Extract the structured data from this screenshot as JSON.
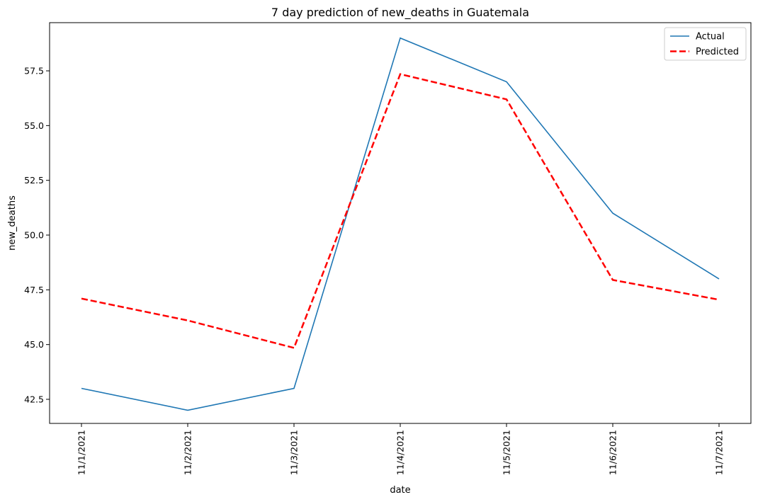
{
  "chart_data": {
    "type": "line",
    "title": "7 day prediction of new_deaths in Guatemala",
    "xlabel": "date",
    "ylabel": "new_deaths",
    "categories": [
      "11/1/2021",
      "11/2/2021",
      "11/3/2021",
      "11/4/2021",
      "11/5/2021",
      "11/6/2021",
      "11/7/2021"
    ],
    "ylim": [
      41.4,
      59.7
    ],
    "yticks": [
      42.5,
      45.0,
      47.5,
      50.0,
      52.5,
      55.0,
      57.5
    ],
    "ytick_labels": [
      "42.5",
      "45.0",
      "47.5",
      "50.0",
      "52.5",
      "55.0",
      "57.5"
    ],
    "grid": false,
    "legend_position": "top-right",
    "series": [
      {
        "name": "Actual",
        "color": "#1f77b4",
        "style": "solid",
        "values": [
          43,
          42,
          43,
          59,
          57,
          51,
          48
        ]
      },
      {
        "name": "Predicted",
        "color": "#ff0000",
        "style": "dashed",
        "values": [
          47.1,
          46.1,
          44.85,
          57.35,
          56.2,
          47.95,
          47.05
        ]
      }
    ]
  }
}
